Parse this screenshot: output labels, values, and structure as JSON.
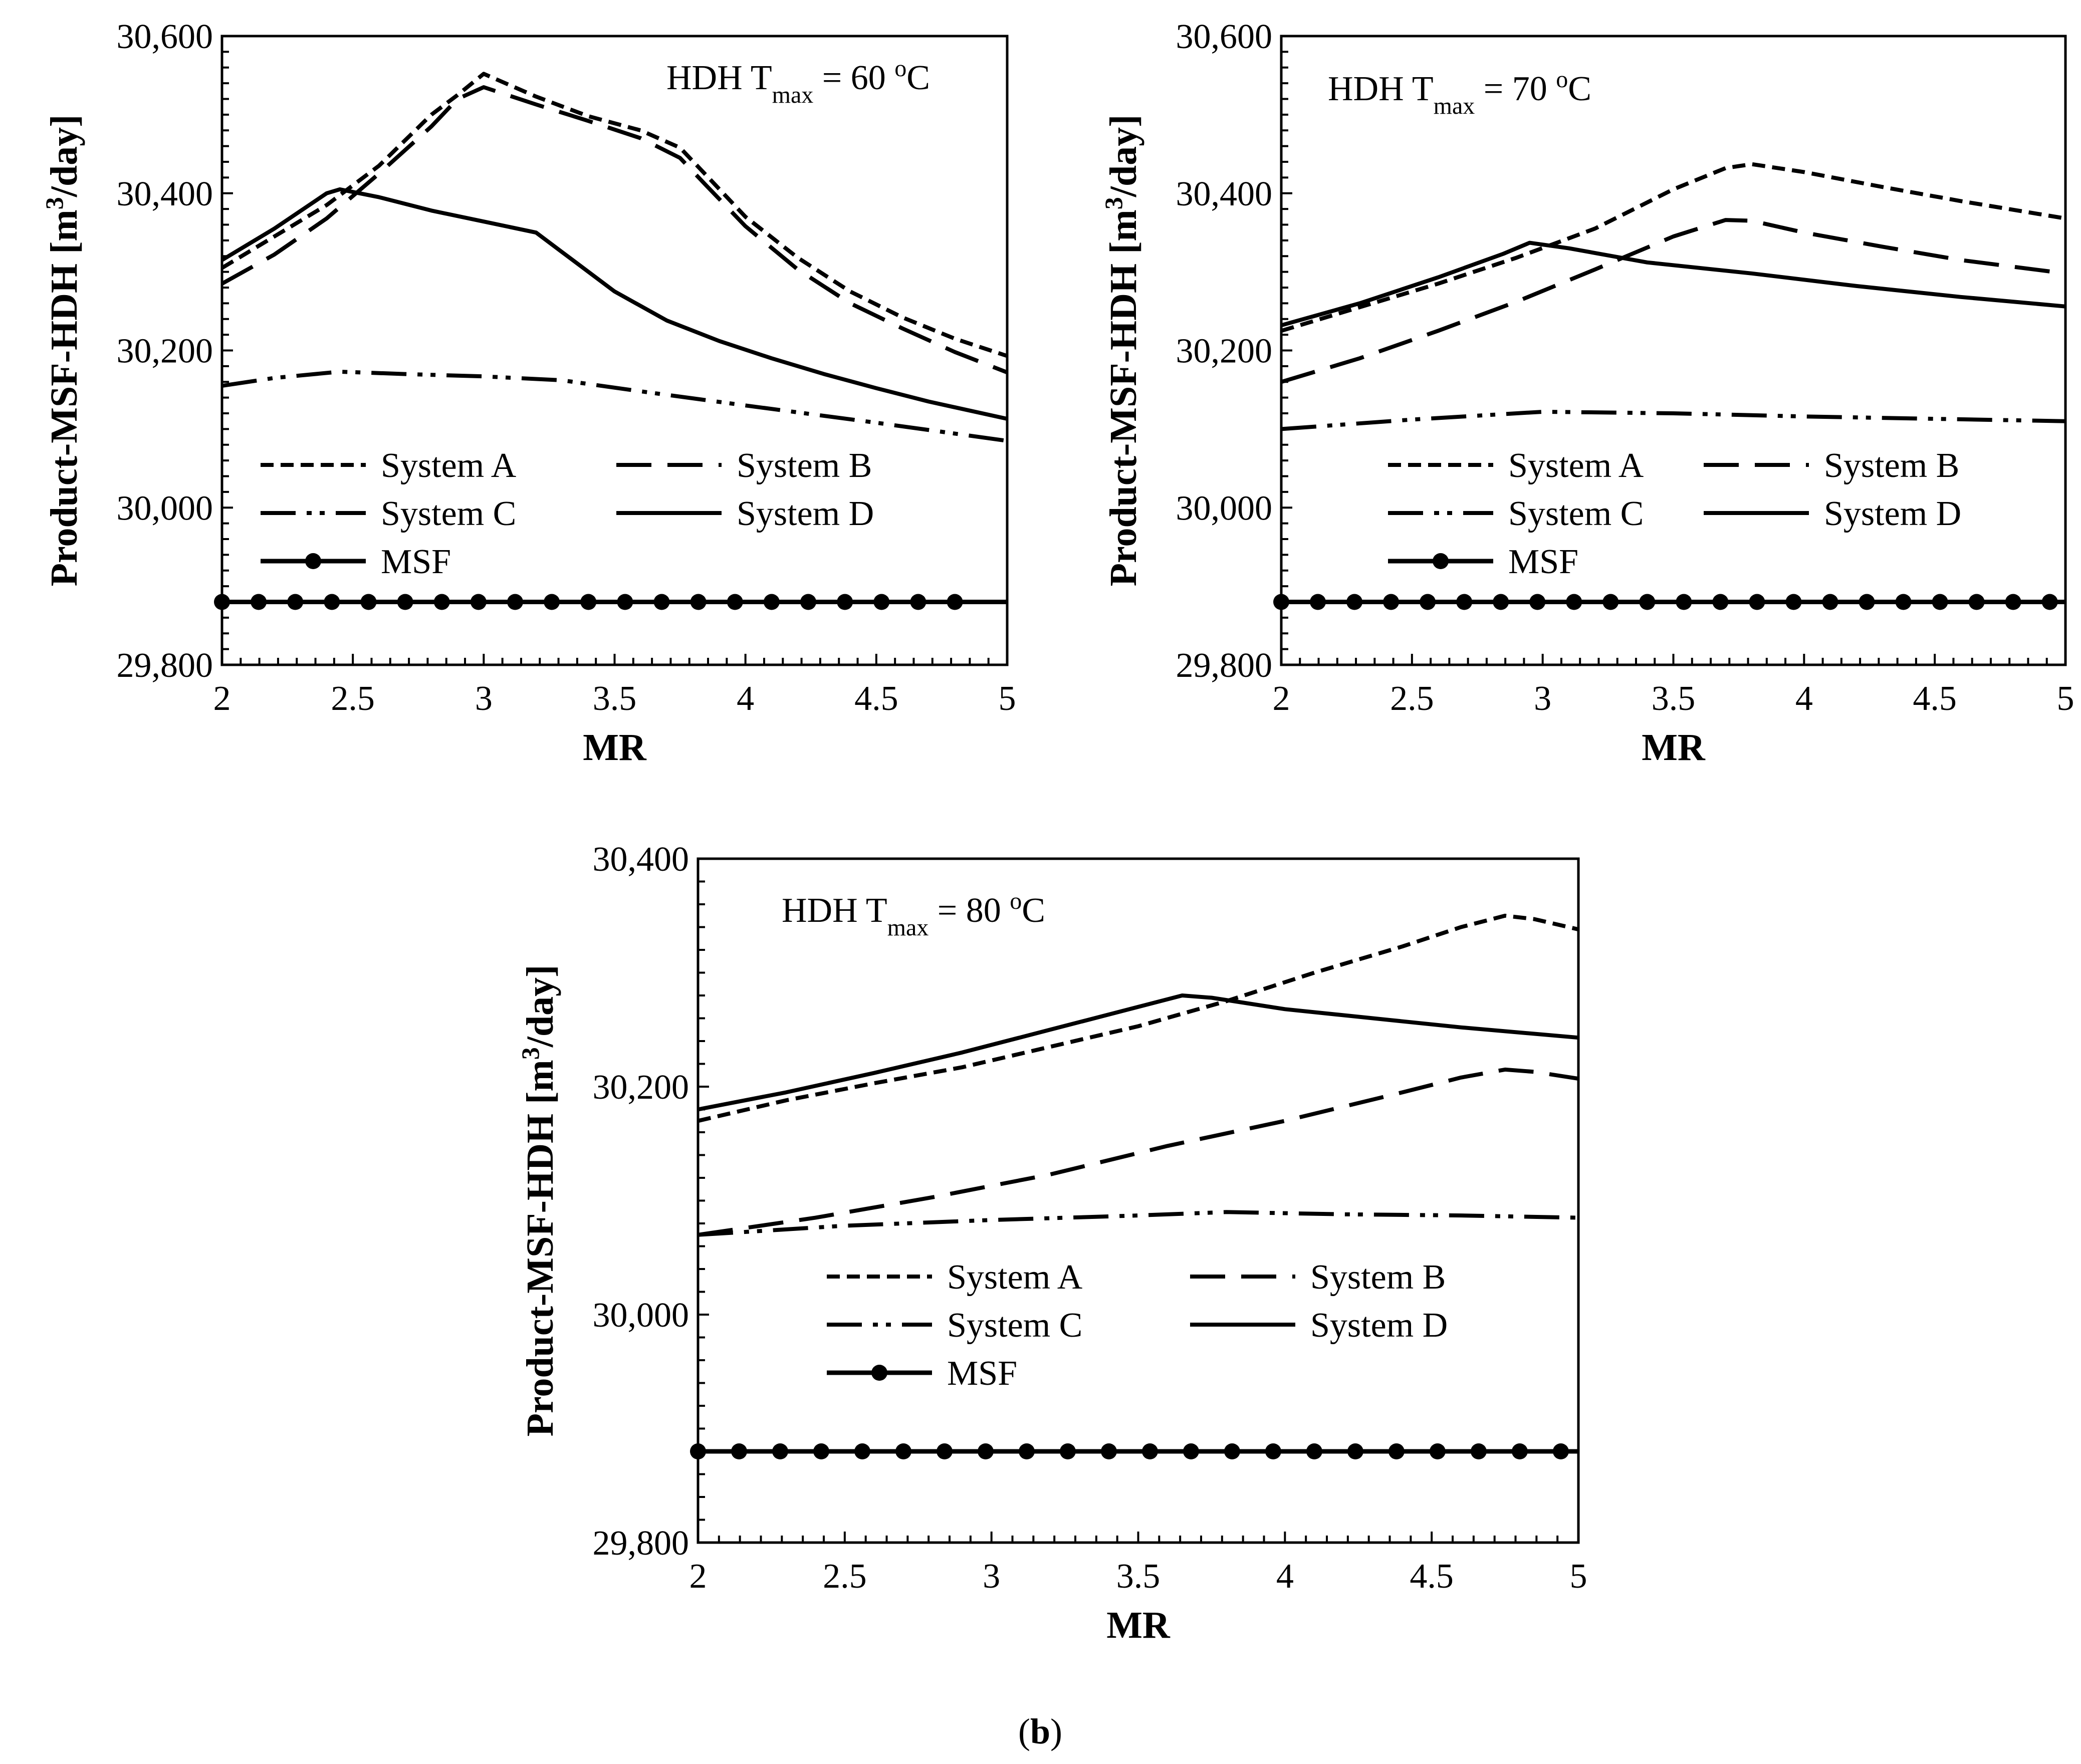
{
  "figure": {
    "caption_prefix": "(",
    "caption_letter": "b",
    "caption_suffix": ")"
  },
  "legend_labels": [
    "System A",
    "System B",
    "System C",
    "System D",
    "MSF"
  ],
  "chart_data": [
    {
      "type": "line",
      "id": "panel-60",
      "annotation": {
        "prefix": "HDH T",
        "sub": "max",
        "value": " = 60 ",
        "sup": "o",
        "unit": "C"
      },
      "xlabel": "MR",
      "ylabel": {
        "main": "Product-MSF-HDH [m",
        "sup": "3",
        "end": "/day]"
      },
      "xlim": [
        2,
        5
      ],
      "ylim": [
        29800,
        30600
      ],
      "xticks": [
        "2",
        "2.5",
        "3",
        "3.5",
        "4",
        "4.5",
        "5"
      ],
      "yticks": [
        "29,800",
        "30,000",
        "30,200",
        "30,400",
        "30,600"
      ],
      "series": [
        {
          "name": "System A",
          "x": [
            2,
            2.2,
            2.4,
            2.6,
            2.8,
            2.9,
            3.0,
            3.2,
            3.4,
            3.6,
            3.75,
            3.85,
            4.0,
            4.2,
            4.4,
            4.6,
            4.8,
            5.0
          ],
          "y": [
            30305,
            30345,
            30385,
            30435,
            30500,
            30525,
            30552,
            30523,
            30498,
            30480,
            30458,
            30423,
            30370,
            30318,
            30275,
            30242,
            30215,
            30193
          ]
        },
        {
          "name": "System B",
          "x": [
            2,
            2.2,
            2.4,
            2.6,
            2.8,
            2.9,
            3.0,
            3.2,
            3.4,
            3.6,
            3.75,
            3.85,
            4.0,
            4.2,
            4.4,
            4.6,
            4.8,
            5.0
          ],
          "y": [
            30285,
            30322,
            30368,
            30425,
            30485,
            30520,
            30535,
            30513,
            30492,
            30470,
            30445,
            30410,
            30358,
            30303,
            30260,
            30228,
            30198,
            30172
          ]
        },
        {
          "name": "System C",
          "x": [
            2,
            2.2,
            2.45,
            2.7,
            3.0,
            3.3,
            3.6,
            4.0,
            4.5,
            5.0
          ],
          "y": [
            30155,
            30165,
            30173,
            30170,
            30167,
            30162,
            30148,
            30130,
            30108,
            30085
          ]
        },
        {
          "name": "System D",
          "x": [
            2,
            2.2,
            2.4,
            2.45,
            2.6,
            2.8,
            3.0,
            3.2,
            3.3,
            3.5,
            3.7,
            3.9,
            4.1,
            4.3,
            4.5,
            4.7,
            5.0
          ],
          "y": [
            30315,
            30355,
            30400,
            30405,
            30395,
            30378,
            30364,
            30350,
            30325,
            30275,
            30238,
            30212,
            30190,
            30170,
            30152,
            30135,
            30113
          ]
        },
        {
          "name": "MSF",
          "x": [
            2,
            2.14,
            2.28,
            2.42,
            2.56,
            2.7,
            2.84,
            2.98,
            3.12,
            3.26,
            3.4,
            3.54,
            3.68,
            3.82,
            3.96,
            4.1,
            4.24,
            4.38,
            4.52,
            4.66,
            4.8,
            5.0
          ],
          "y": [
            29880,
            29880,
            29880,
            29880,
            29880,
            29880,
            29880,
            29880,
            29880,
            29880,
            29880,
            29880,
            29880,
            29880,
            29880,
            29880,
            29880,
            29880,
            29880,
            29880,
            29880,
            29880
          ],
          "markers": 21
        }
      ]
    },
    {
      "type": "line",
      "id": "panel-70",
      "annotation": {
        "prefix": "HDH T",
        "sub": "max",
        "value": " = 70 ",
        "sup": "o",
        "unit": "C"
      },
      "xlabel": "MR",
      "ylabel": {
        "main": "Product-MSF-HDH [m",
        "sup": "3",
        "end": "/day]"
      },
      "xlim": [
        2,
        5
      ],
      "ylim": [
        29800,
        30600
      ],
      "xticks": [
        "2",
        "2.5",
        "3",
        "3.5",
        "4",
        "4.5",
        "5"
      ],
      "yticks": [
        "29,800",
        "30,000",
        "30,200",
        "30,400",
        "30,600"
      ],
      "series": [
        {
          "name": "System A",
          "x": [
            2,
            2.3,
            2.6,
            2.9,
            3.2,
            3.5,
            3.7,
            3.8,
            4.0,
            4.3,
            4.6,
            5.0
          ],
          "y": [
            30225,
            30255,
            30285,
            30318,
            30355,
            30405,
            30432,
            30437,
            30427,
            30408,
            30390,
            30368
          ]
        },
        {
          "name": "System B",
          "x": [
            2,
            2.3,
            2.6,
            2.9,
            3.2,
            3.5,
            3.7,
            3.8,
            4.0,
            4.3,
            4.6,
            5.0
          ],
          "y": [
            30160,
            30190,
            30225,
            30262,
            30303,
            30345,
            30366,
            30365,
            30350,
            30332,
            30315,
            30298
          ]
        },
        {
          "name": "System C",
          "x": [
            2,
            2.5,
            3.0,
            3.5,
            4.0,
            4.5,
            5.0
          ],
          "y": [
            30100,
            30112,
            30122,
            30120,
            30116,
            30113,
            30110
          ]
        },
        {
          "name": "System D",
          "x": [
            2,
            2.3,
            2.6,
            2.85,
            2.95,
            3.1,
            3.4,
            3.8,
            4.2,
            4.6,
            5.0
          ],
          "y": [
            30232,
            30260,
            30293,
            30323,
            30337,
            30330,
            30312,
            30298,
            30282,
            30268,
            30256
          ]
        },
        {
          "name": "MSF",
          "x": [
            2,
            2.14,
            2.28,
            2.42,
            2.56,
            2.7,
            2.84,
            2.98,
            3.12,
            3.26,
            3.4,
            3.54,
            3.68,
            3.82,
            3.96,
            4.1,
            4.24,
            4.38,
            4.52,
            4.66,
            4.8,
            4.94,
            5.0
          ],
          "y": [
            29880,
            29880,
            29880,
            29880,
            29880,
            29880,
            29880,
            29880,
            29880,
            29880,
            29880,
            29880,
            29880,
            29880,
            29880,
            29880,
            29880,
            29880,
            29880,
            29880,
            29880,
            29880,
            29880
          ],
          "markers": 22
        }
      ]
    },
    {
      "type": "line",
      "id": "panel-80",
      "annotation": {
        "prefix": "HDH T",
        "sub": "max",
        "value": " = 80 ",
        "sup": "o",
        "unit": "C"
      },
      "xlabel": "MR",
      "ylabel": {
        "main": "Product-MSF-HDH [m",
        "sup": "3",
        "end": "/day]"
      },
      "xlim": [
        2,
        5
      ],
      "ylim": [
        29800,
        30400
      ],
      "xticks": [
        "2",
        "2.5",
        "3",
        "3.5",
        "4",
        "4.5",
        "5"
      ],
      "yticks": [
        "29,800",
        "30,000",
        "30,200",
        "30,400"
      ],
      "series": [
        {
          "name": "System A",
          "x": [
            2,
            2.3,
            2.6,
            2.9,
            3.2,
            3.5,
            3.8,
            4.1,
            4.4,
            4.6,
            4.75,
            4.85,
            5.0
          ],
          "y": [
            30170,
            30188,
            30203,
            30217,
            30235,
            30253,
            30275,
            30300,
            30323,
            30340,
            30350,
            30347,
            30338
          ]
        },
        {
          "name": "System B",
          "x": [
            2,
            2.4,
            2.8,
            3.2,
            3.6,
            4.0,
            4.4,
            4.6,
            4.75,
            4.85,
            5.0
          ],
          "y": [
            30070,
            30085,
            30103,
            30123,
            30148,
            30170,
            30195,
            30208,
            30215,
            30213,
            30207
          ]
        },
        {
          "name": "System C",
          "x": [
            2,
            2.5,
            3.0,
            3.5,
            3.8,
            4.2,
            4.6,
            5.0
          ],
          "y": [
            30070,
            30078,
            30083,
            30087,
            30090,
            30088,
            30087,
            30085
          ]
        },
        {
          "name": "System D",
          "x": [
            2,
            2.3,
            2.6,
            2.9,
            3.2,
            3.5,
            3.65,
            3.75,
            4.0,
            4.3,
            4.6,
            5.0
          ],
          "y": [
            30180,
            30195,
            30212,
            30230,
            30250,
            30270,
            30280,
            30278,
            30268,
            30260,
            30252,
            30243
          ]
        },
        {
          "name": "MSF",
          "x": [
            2,
            2.14,
            2.28,
            2.42,
            2.56,
            2.7,
            2.84,
            2.98,
            3.12,
            3.26,
            3.4,
            3.54,
            3.68,
            3.82,
            3.96,
            4.1,
            4.24,
            4.38,
            4.52,
            4.66,
            4.8,
            4.94,
            5.0
          ],
          "y": [
            29880,
            29880,
            29880,
            29880,
            29880,
            29880,
            29880,
            29880,
            29880,
            29880,
            29880,
            29880,
            29880,
            29880,
            29880,
            29880,
            29880,
            29880,
            29880,
            29880,
            29880,
            29880,
            29880
          ],
          "markers": 22
        }
      ]
    }
  ]
}
